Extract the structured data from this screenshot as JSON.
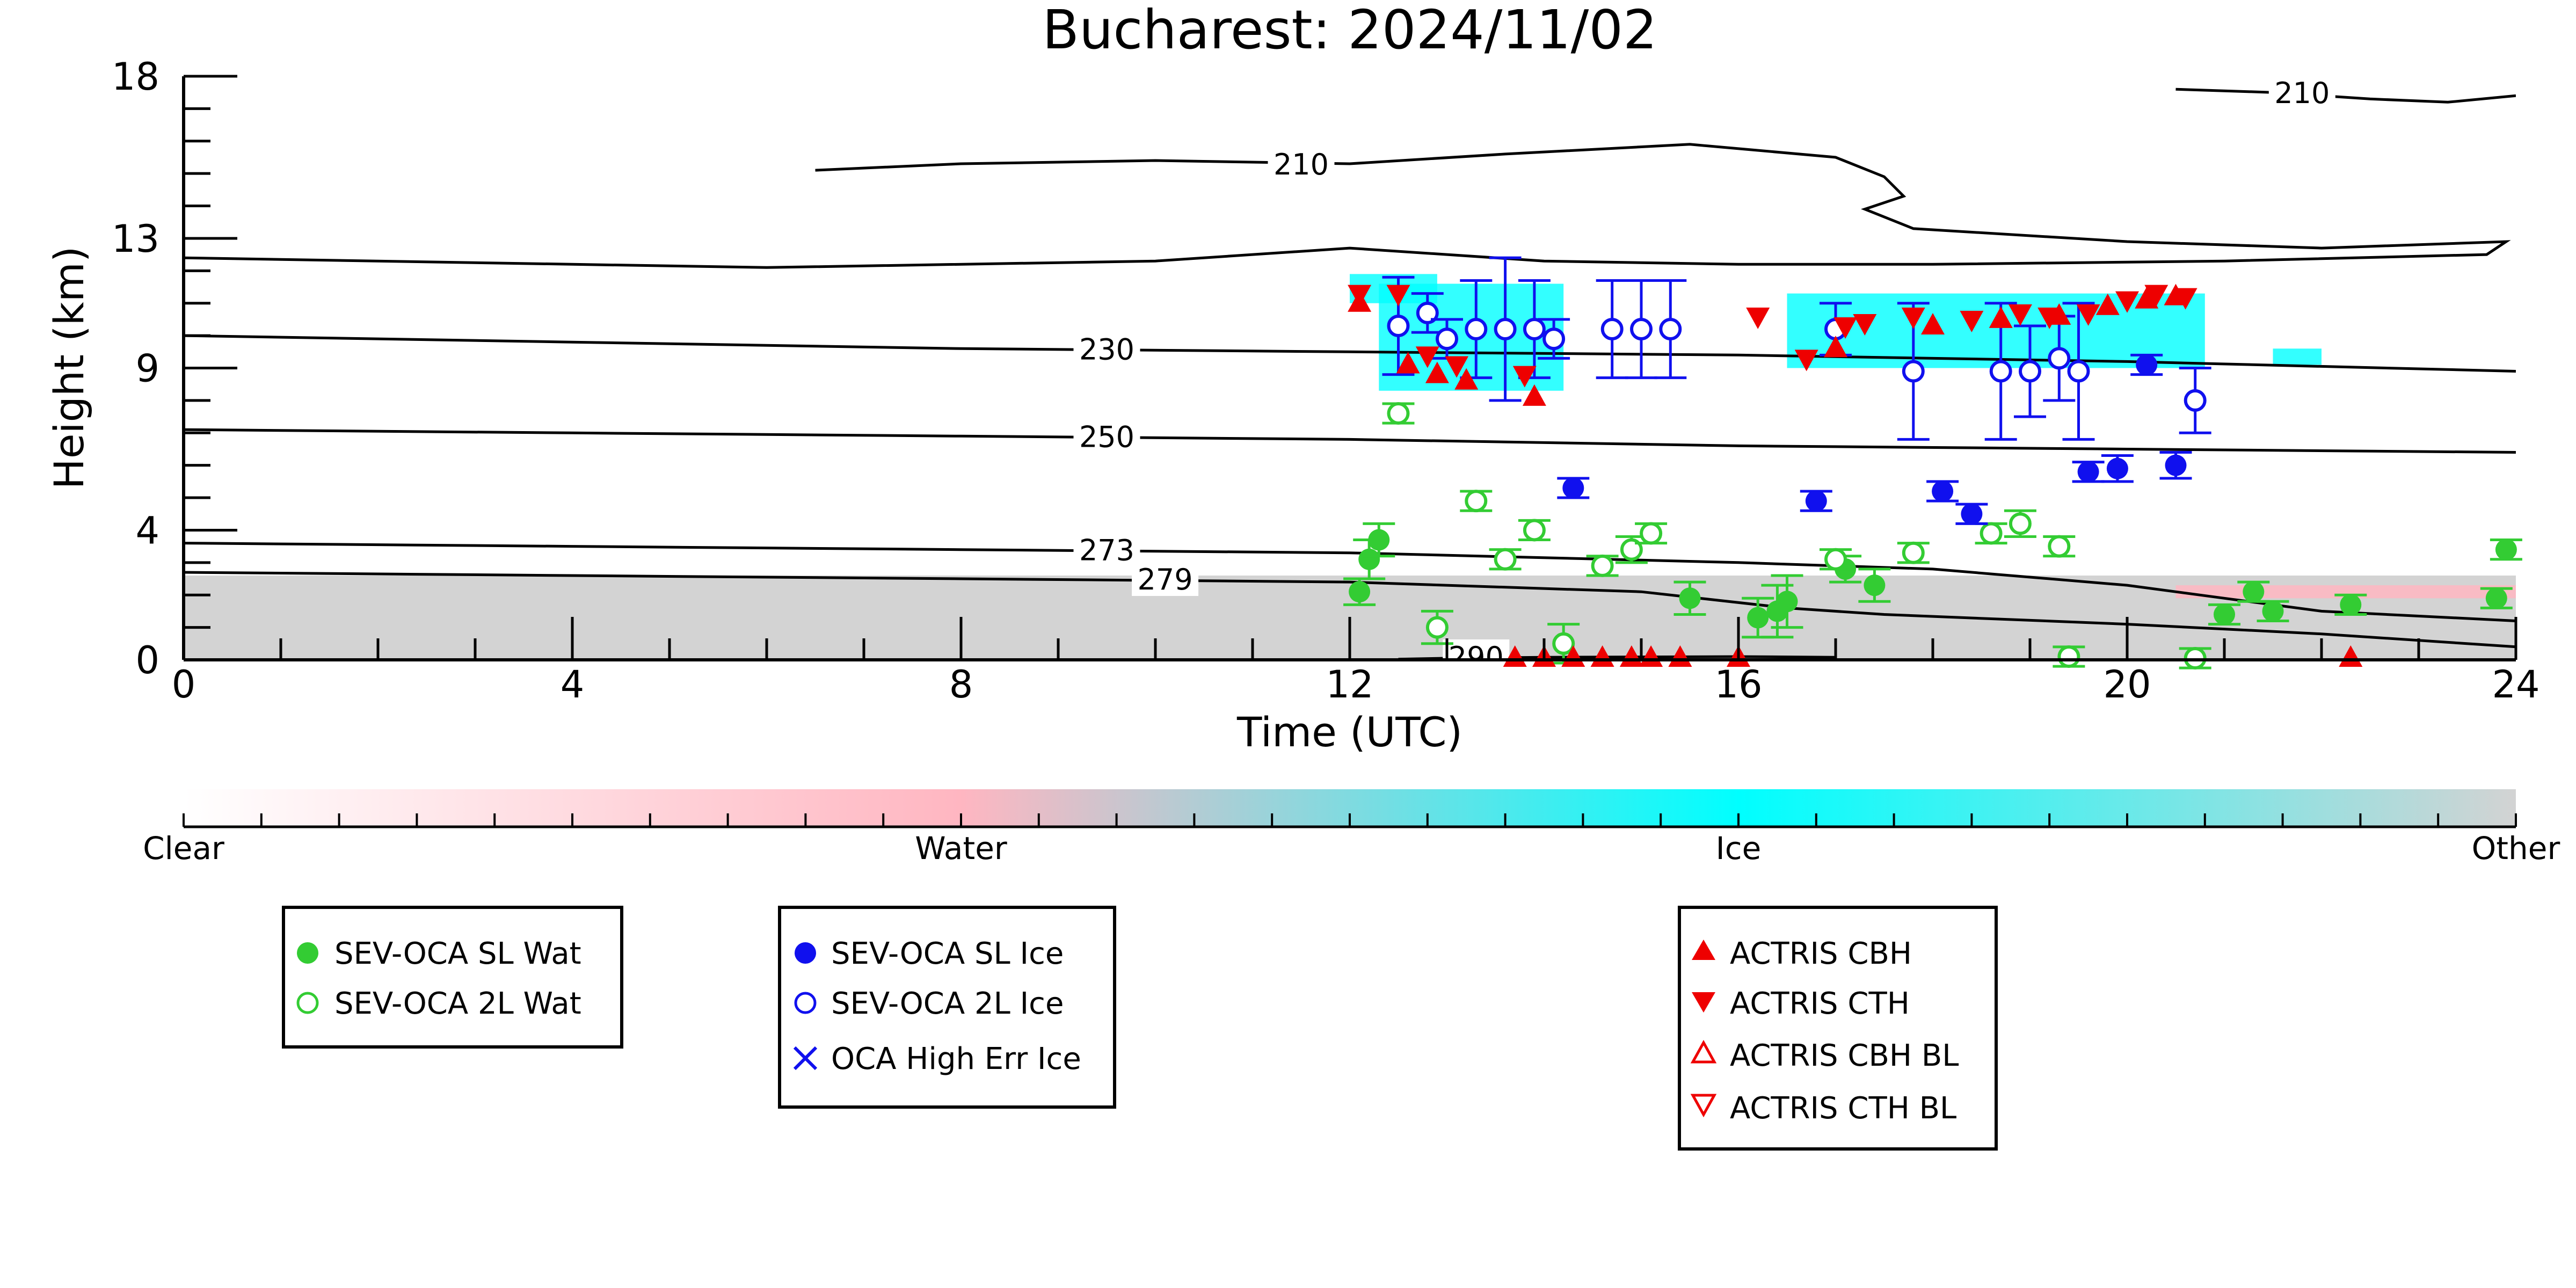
{
  "chart_data": {
    "type": "scatter",
    "title": "Bucharest: 2024/11/02",
    "xlabel": "Time (UTC)",
    "ylabel": "Height (km)",
    "xlim": [
      0,
      24
    ],
    "ylim": [
      0,
      18
    ],
    "x_ticks": [
      0,
      4,
      8,
      12,
      16,
      20,
      24
    ],
    "y_ticks": [
      0,
      4,
      9,
      13,
      18
    ],
    "colors": {
      "sl_wat": "#33cc33",
      "wat_2l": "#33cc33",
      "sl_ice": "#1010ee",
      "ice_2l": "#1010ee",
      "actris": "#ee0000",
      "contour": "#000000",
      "clear": "#ffffff",
      "water": "#ffb6c1",
      "ice": "#00ffff",
      "other": "#d3d3d3"
    },
    "colorbar": {
      "labels": [
        "Clear",
        "Water",
        "Ice",
        "Other"
      ]
    },
    "contours": [
      {
        "label": "210",
        "points": [
          [
            6.5,
            15.1
          ],
          [
            8,
            15.3
          ],
          [
            10,
            15.4
          ],
          [
            12,
            15.3
          ],
          [
            13.6,
            15.6
          ],
          [
            15.5,
            15.9
          ],
          [
            17.0,
            15.5
          ],
          [
            17.5,
            14.9
          ],
          [
            17.7,
            14.3
          ],
          [
            17.3,
            13.9
          ],
          [
            17.8,
            13.3
          ],
          [
            20,
            12.9
          ],
          [
            22,
            12.7
          ],
          [
            23.9,
            12.9
          ],
          [
            23.7,
            12.5
          ],
          [
            21,
            12.3
          ],
          [
            18,
            12.2
          ],
          [
            16,
            12.2
          ],
          [
            14,
            12.3
          ],
          [
            12,
            12.7
          ],
          [
            10,
            12.3
          ],
          [
            6,
            12.1
          ],
          [
            0,
            12.4
          ]
        ],
        "label_at": [
          11.5,
          15.3
        ]
      },
      {
        "label": "210",
        "points": [
          [
            20.5,
            17.6
          ],
          [
            21.5,
            17.5
          ],
          [
            22.5,
            17.3
          ],
          [
            23.3,
            17.2
          ],
          [
            24,
            17.4
          ]
        ],
        "label_at": [
          21.8,
          17.5
        ]
      },
      {
        "label": "230",
        "points": [
          [
            0,
            10.0
          ],
          [
            4,
            9.8
          ],
          [
            8,
            9.6
          ],
          [
            12,
            9.5
          ],
          [
            16,
            9.4
          ],
          [
            20,
            9.2
          ],
          [
            24,
            8.9
          ]
        ],
        "label_at": [
          9.5,
          9.6
        ]
      },
      {
        "label": "250",
        "points": [
          [
            0,
            7.1
          ],
          [
            4,
            7.0
          ],
          [
            8,
            6.9
          ],
          [
            12,
            6.8
          ],
          [
            16,
            6.6
          ],
          [
            20,
            6.5
          ],
          [
            24,
            6.4
          ]
        ],
        "label_at": [
          9.5,
          6.9
        ]
      },
      {
        "label": "273",
        "points": [
          [
            0,
            3.6
          ],
          [
            4,
            3.5
          ],
          [
            8,
            3.4
          ],
          [
            12,
            3.3
          ],
          [
            16,
            3.0
          ],
          [
            18,
            2.8
          ],
          [
            20,
            2.3
          ],
          [
            21,
            1.9
          ],
          [
            22,
            1.5
          ],
          [
            24,
            1.2
          ]
        ],
        "label_at": [
          9.5,
          3.4
        ]
      },
      {
        "label": "279",
        "points": [
          [
            0,
            2.7
          ],
          [
            4,
            2.6
          ],
          [
            8,
            2.5
          ],
          [
            12,
            2.4
          ],
          [
            15,
            2.1
          ],
          [
            16.5,
            1.6
          ],
          [
            17.5,
            1.4
          ],
          [
            20,
            1.1
          ],
          [
            22,
            0.8
          ],
          [
            24,
            0.4
          ]
        ],
        "label_at": [
          10.1,
          2.5
        ]
      },
      {
        "label": "290",
        "points": [
          [
            12.5,
            0.02
          ],
          [
            13,
            0.05
          ],
          [
            14,
            0.08
          ],
          [
            16,
            0.1
          ],
          [
            17,
            0.08
          ]
        ],
        "label_at": [
          13.3,
          0.1
        ]
      }
    ],
    "series": [
      {
        "name": "SEV-OCA SL Wat",
        "marker": "filled-circle",
        "color": "#33cc33",
        "points": [
          [
            12.1,
            2.1,
            0.4
          ],
          [
            12.2,
            3.1,
            0.6
          ],
          [
            12.3,
            3.7,
            0.5
          ],
          [
            15.5,
            1.9,
            0.5
          ],
          [
            16.2,
            1.3,
            0.6
          ],
          [
            16.4,
            1.5,
            0.8
          ],
          [
            16.5,
            1.8,
            0.8
          ],
          [
            17.1,
            2.8,
            0.4
          ],
          [
            17.4,
            2.3,
            0.5
          ],
          [
            21.0,
            1.4,
            0.3
          ],
          [
            21.3,
            2.1,
            0.3
          ],
          [
            21.5,
            1.5,
            0.3
          ],
          [
            22.3,
            1.7,
            0.3
          ],
          [
            23.8,
            1.9,
            0.3
          ],
          [
            23.9,
            3.4,
            0.3
          ]
        ]
      },
      {
        "name": "SEV-OCA 2L Wat",
        "marker": "open-circle",
        "color": "#33cc33",
        "points": [
          [
            12.5,
            7.6,
            0.3
          ],
          [
            12.9,
            1.0,
            0.5
          ],
          [
            13.3,
            4.9,
            0.3
          ],
          [
            13.6,
            3.1,
            0.3
          ],
          [
            13.9,
            4.0,
            0.3
          ],
          [
            14.2,
            0.5,
            0.6
          ],
          [
            14.6,
            2.9,
            0.3
          ],
          [
            14.9,
            3.4,
            0.4
          ],
          [
            15.1,
            3.9,
            0.3
          ],
          [
            17.0,
            3.1,
            0.3
          ],
          [
            17.8,
            3.3,
            0.3
          ],
          [
            18.6,
            3.9,
            0.3
          ],
          [
            18.9,
            4.2,
            0.4
          ],
          [
            19.3,
            3.5,
            0.3
          ],
          [
            19.4,
            0.1,
            0.3
          ],
          [
            20.7,
            0.05,
            0.3
          ]
        ]
      },
      {
        "name": "SEV-OCA SL Ice",
        "marker": "filled-circle",
        "color": "#1010ee",
        "points": [
          [
            14.3,
            5.3,
            0.3
          ],
          [
            16.8,
            4.9,
            0.3
          ],
          [
            18.1,
            5.2,
            0.3
          ],
          [
            18.4,
            4.5,
            0.3
          ],
          [
            19.6,
            5.8,
            0.3
          ],
          [
            19.9,
            5.9,
            0.4
          ],
          [
            20.2,
            9.1,
            0.3
          ],
          [
            20.5,
            6.0,
            0.4
          ]
        ]
      },
      {
        "name": "SEV-OCA 2L Ice",
        "marker": "open-circle",
        "color": "#1010ee",
        "points": [
          [
            12.5,
            10.3,
            1.5
          ],
          [
            12.8,
            10.7,
            0.6
          ],
          [
            13.0,
            9.9,
            0.6
          ],
          [
            13.3,
            10.2,
            1.5
          ],
          [
            13.6,
            10.2,
            2.2
          ],
          [
            13.9,
            10.2,
            1.5
          ],
          [
            14.1,
            9.9,
            0.6
          ],
          [
            14.7,
            10.2,
            1.5
          ],
          [
            15.0,
            10.2,
            1.5
          ],
          [
            15.3,
            10.2,
            1.5
          ],
          [
            17.0,
            10.2,
            0.8
          ],
          [
            17.8,
            8.9,
            2.1
          ],
          [
            18.7,
            8.9,
            2.1
          ],
          [
            19.0,
            8.9,
            1.4
          ],
          [
            19.3,
            9.3,
            1.3
          ],
          [
            19.5,
            8.9,
            2.1
          ],
          [
            20.7,
            8.0,
            1.0
          ]
        ]
      },
      {
        "name": "OCA High Err Ice",
        "marker": "cross",
        "color": "#1010ee",
        "points": []
      },
      {
        "name": "ACTRIS CBH",
        "marker": "filled-triangle-up",
        "color": "#ee0000",
        "points": [
          [
            12.1,
            11.0
          ],
          [
            12.6,
            9.1
          ],
          [
            12.9,
            8.8
          ],
          [
            13.2,
            8.6
          ],
          [
            13.9,
            8.1
          ],
          [
            17.0,
            9.6
          ],
          [
            18.0,
            10.3
          ],
          [
            18.7,
            10.5
          ],
          [
            19.3,
            10.6
          ],
          [
            19.8,
            10.9
          ],
          [
            20.2,
            11.1
          ],
          [
            20.5,
            11.2
          ],
          [
            13.7,
            0.05
          ],
          [
            14.0,
            0.05
          ],
          [
            14.3,
            0.05
          ],
          [
            14.6,
            0.05
          ],
          [
            14.9,
            0.05
          ],
          [
            15.1,
            0.05
          ],
          [
            15.4,
            0.05
          ],
          [
            16.0,
            0.05
          ],
          [
            22.3,
            0.05
          ]
        ]
      },
      {
        "name": "ACTRIS CTH",
        "marker": "filled-triangle-down",
        "color": "#ee0000",
        "points": [
          [
            12.1,
            11.3
          ],
          [
            12.5,
            11.3
          ],
          [
            12.8,
            9.4
          ],
          [
            13.1,
            9.1
          ],
          [
            13.8,
            8.8
          ],
          [
            16.2,
            10.6
          ],
          [
            16.7,
            9.3
          ],
          [
            17.1,
            10.3
          ],
          [
            17.3,
            10.4
          ],
          [
            17.8,
            10.6
          ],
          [
            18.4,
            10.5
          ],
          [
            18.9,
            10.7
          ],
          [
            19.2,
            10.6
          ],
          [
            19.6,
            10.7
          ],
          [
            20.0,
            11.1
          ],
          [
            20.3,
            11.3
          ],
          [
            20.6,
            11.2
          ]
        ]
      },
      {
        "name": "ACTRIS CBH BL",
        "marker": "open-triangle-up",
        "color": "#ee0000",
        "points": []
      },
      {
        "name": "ACTRIS CTH BL",
        "marker": "open-triangle-down",
        "color": "#ee0000",
        "points": []
      }
    ],
    "backscatter": {
      "ice_regions": [
        [
          12.3,
          14.2,
          8.3,
          11.6
        ],
        [
          16.5,
          20.8,
          9.0,
          11.3
        ],
        [
          12.0,
          12.9,
          11.0,
          11.9
        ],
        [
          21.5,
          22.0,
          9.1,
          9.6
        ]
      ],
      "other_band": [
        0,
        24,
        0,
        2.6
      ],
      "water_regions": [
        [
          20.5,
          24,
          1.9,
          2.3
        ]
      ]
    },
    "legends": [
      {
        "entries": [
          "SEV-OCA SL Wat",
          "SEV-OCA 2L Wat"
        ]
      },
      {
        "entries": [
          "SEV-OCA SL Ice",
          "SEV-OCA 2L Ice",
          "OCA High Err Ice"
        ]
      },
      {
        "entries": [
          "ACTRIS CBH",
          "ACTRIS CTH",
          "ACTRIS CBH BL",
          "ACTRIS CTH BL"
        ]
      }
    ]
  }
}
